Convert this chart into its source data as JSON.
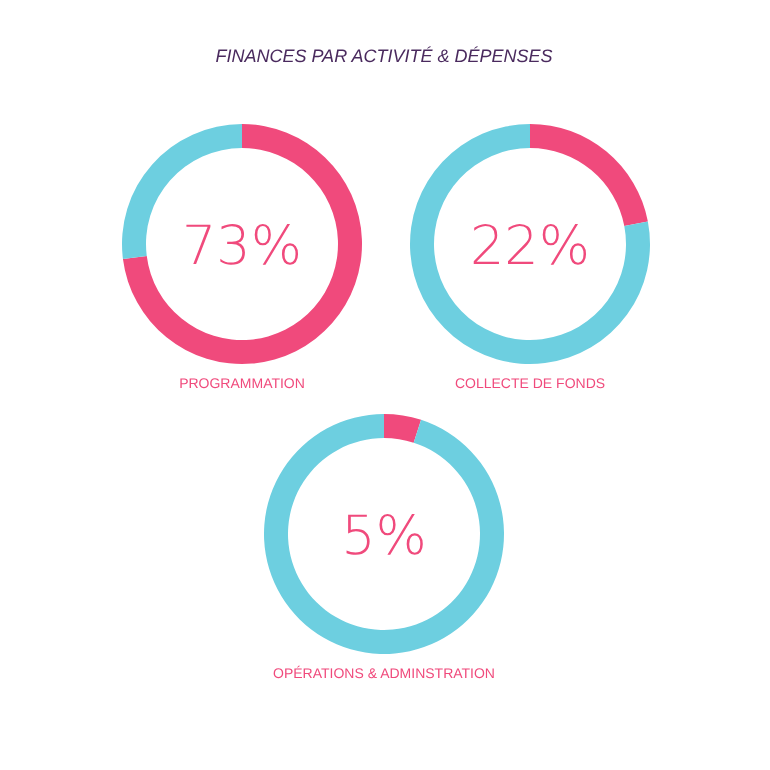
{
  "chart_data": [
    {
      "type": "donut",
      "title": "FINANCES PAR ACTIVITÉ & DÉPENSES",
      "xlabel": "PROGRAMMATION",
      "categories": [
        null,
        null
      ],
      "values": [
        73,
        27
      ],
      "colors": [
        "#f04a7c",
        "#6dcfe0"
      ],
      "annotations": [
        "73%"
      ]
    },
    {
      "type": "donut",
      "xlabel": "COLLECTE DE FONDS",
      "categories": [
        null,
        null
      ],
      "values": [
        22,
        78
      ],
      "colors": [
        "#f04a7c",
        "#6dcfe0"
      ],
      "annotations": [
        "22%"
      ]
    },
    {
      "type": "donut",
      "xlabel": "OPÉRATIONS & ADMINSTRATION",
      "categories": [
        null,
        null
      ],
      "values": [
        5,
        95
      ],
      "colors": [
        "#f04a7c",
        "#6dcfe0"
      ],
      "annotations": [
        "5%"
      ]
    }
  ]
}
